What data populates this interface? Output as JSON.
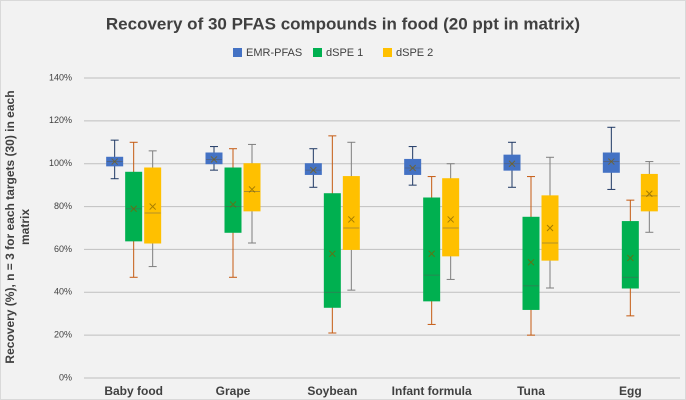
{
  "chart_data": {
    "type": "box",
    "title": "Recovery of 30 PFAS compounds in food (20 ppt in matrix)",
    "y_label": "Recovery (%), n = 3 for each targets (30) in each matrix",
    "categories": [
      "Baby food",
      "Grape",
      "Soybean",
      "Infant formula",
      "Tuna",
      "Egg"
    ],
    "ylim": [
      0,
      140
    ],
    "yticks": [
      {
        "value": 0,
        "label": "0%"
      },
      {
        "value": 20,
        "label": "20%"
      },
      {
        "value": 40,
        "label": "40%"
      },
      {
        "value": 60,
        "label": "60%"
      },
      {
        "value": 80,
        "label": "80%"
      },
      {
        "value": 100,
        "label": "100%"
      },
      {
        "value": 120,
        "label": "120%"
      },
      {
        "value": 140,
        "label": "140%"
      }
    ],
    "grid": true,
    "legend": "top",
    "series": [
      {
        "name": "EMR-PFAS",
        "color": "#4472c4",
        "whisker_color": "#1f3864",
        "min": [
          93,
          97,
          89,
          90,
          89,
          88
        ],
        "q1": [
          99,
          100,
          95,
          95,
          97,
          96
        ],
        "median": [
          101,
          102,
          97,
          98,
          100,
          101
        ],
        "q3": [
          103,
          105,
          100,
          102,
          104,
          105
        ],
        "max": [
          111,
          108,
          107,
          108,
          110,
          117
        ],
        "mean": [
          101,
          102,
          97,
          98,
          100,
          101
        ]
      },
      {
        "name": "dSPE 1",
        "color": "#00b050",
        "whisker_color": "#c55a11",
        "min": [
          47,
          47,
          21,
          25,
          20,
          29
        ],
        "q1": [
          64,
          68,
          33,
          36,
          32,
          42
        ],
        "median": [
          79,
          80,
          40,
          48,
          43,
          47
        ],
        "q3": [
          96,
          98,
          86,
          84,
          75,
          73
        ],
        "max": [
          110,
          107,
          113,
          94,
          94,
          83
        ],
        "mean": [
          79,
          81,
          58,
          58,
          54,
          56
        ]
      },
      {
        "name": "dSPE 2",
        "color": "#ffc000",
        "whisker_color": "#7f7f7f",
        "min": [
          52,
          63,
          41,
          46,
          42,
          68
        ],
        "q1": [
          63,
          78,
          60,
          57,
          55,
          78
        ],
        "median": [
          77,
          87,
          70,
          70,
          63,
          85
        ],
        "q3": [
          98,
          100,
          94,
          93,
          85,
          95
        ],
        "max": [
          106,
          109,
          110,
          100,
          103,
          101
        ],
        "mean": [
          80,
          88,
          74,
          74,
          70,
          86
        ]
      }
    ]
  }
}
